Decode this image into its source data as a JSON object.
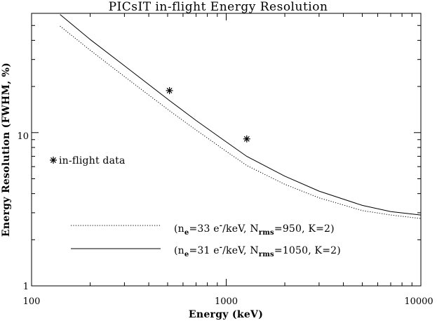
{
  "chart_data": {
    "type": "line",
    "title": "PICsIT in-flight Energy Resolution",
    "xlabel": "Energy (keV)",
    "ylabel": "Energy Resolution (FWHM, %)",
    "xscale": "log",
    "yscale": "log",
    "xlim": [
      100,
      10000
    ],
    "ylim": [
      1,
      60
    ],
    "x_tick_labels": [
      "100",
      "1000",
      "10000"
    ],
    "y_tick_labels": [
      "1",
      "10"
    ],
    "grid": false,
    "series": [
      {
        "name": "(ne=33 e-/keV, Nrms=950, K=2)",
        "label_parts": {
          "a": "(n",
          "a_sub": "e",
          "b": "=33 e",
          "b_sup": "-",
          "c": "/keV, N",
          "c_sub": "rms",
          "d": "=950, K=2)"
        },
        "style": "dotted",
        "color": "#000000",
        "x": [
          140,
          200,
          300,
          511,
          700,
          1000,
          1275,
          2000,
          3000,
          5000,
          7000,
          10000
        ],
        "y": [
          49.5,
          34.5,
          23.2,
          13.9,
          10.4,
          7.55,
          6.1,
          4.6,
          3.75,
          3.1,
          2.9,
          2.75
        ]
      },
      {
        "name": "(ne=31 e-/keV, Nrms=1050, K=2)",
        "label_parts": {
          "a": "(n",
          "a_sub": "e",
          "b": "=31 e",
          "b_sup": "-",
          "c": "/keV, N",
          "c_sub": "rms",
          "d": "=1050, K=2)"
        },
        "style": "solid",
        "color": "#000000",
        "x": [
          140,
          200,
          300,
          511,
          700,
          1000,
          1275,
          2000,
          3000,
          5000,
          7000,
          10000
        ],
        "y": [
          59.0,
          40.5,
          27.3,
          16.2,
          12.0,
          8.7,
          7.0,
          5.2,
          4.15,
          3.35,
          3.05,
          2.9
        ]
      }
    ],
    "markers": {
      "name": "in-flight data",
      "symbol": "asterisk",
      "points": [
        {
          "x": 511,
          "y": 18.8
        },
        {
          "x": 1275,
          "y": 9.1
        }
      ]
    },
    "marker_legend_placement": "left-middle",
    "line_legend_placement": "bottom-center"
  }
}
